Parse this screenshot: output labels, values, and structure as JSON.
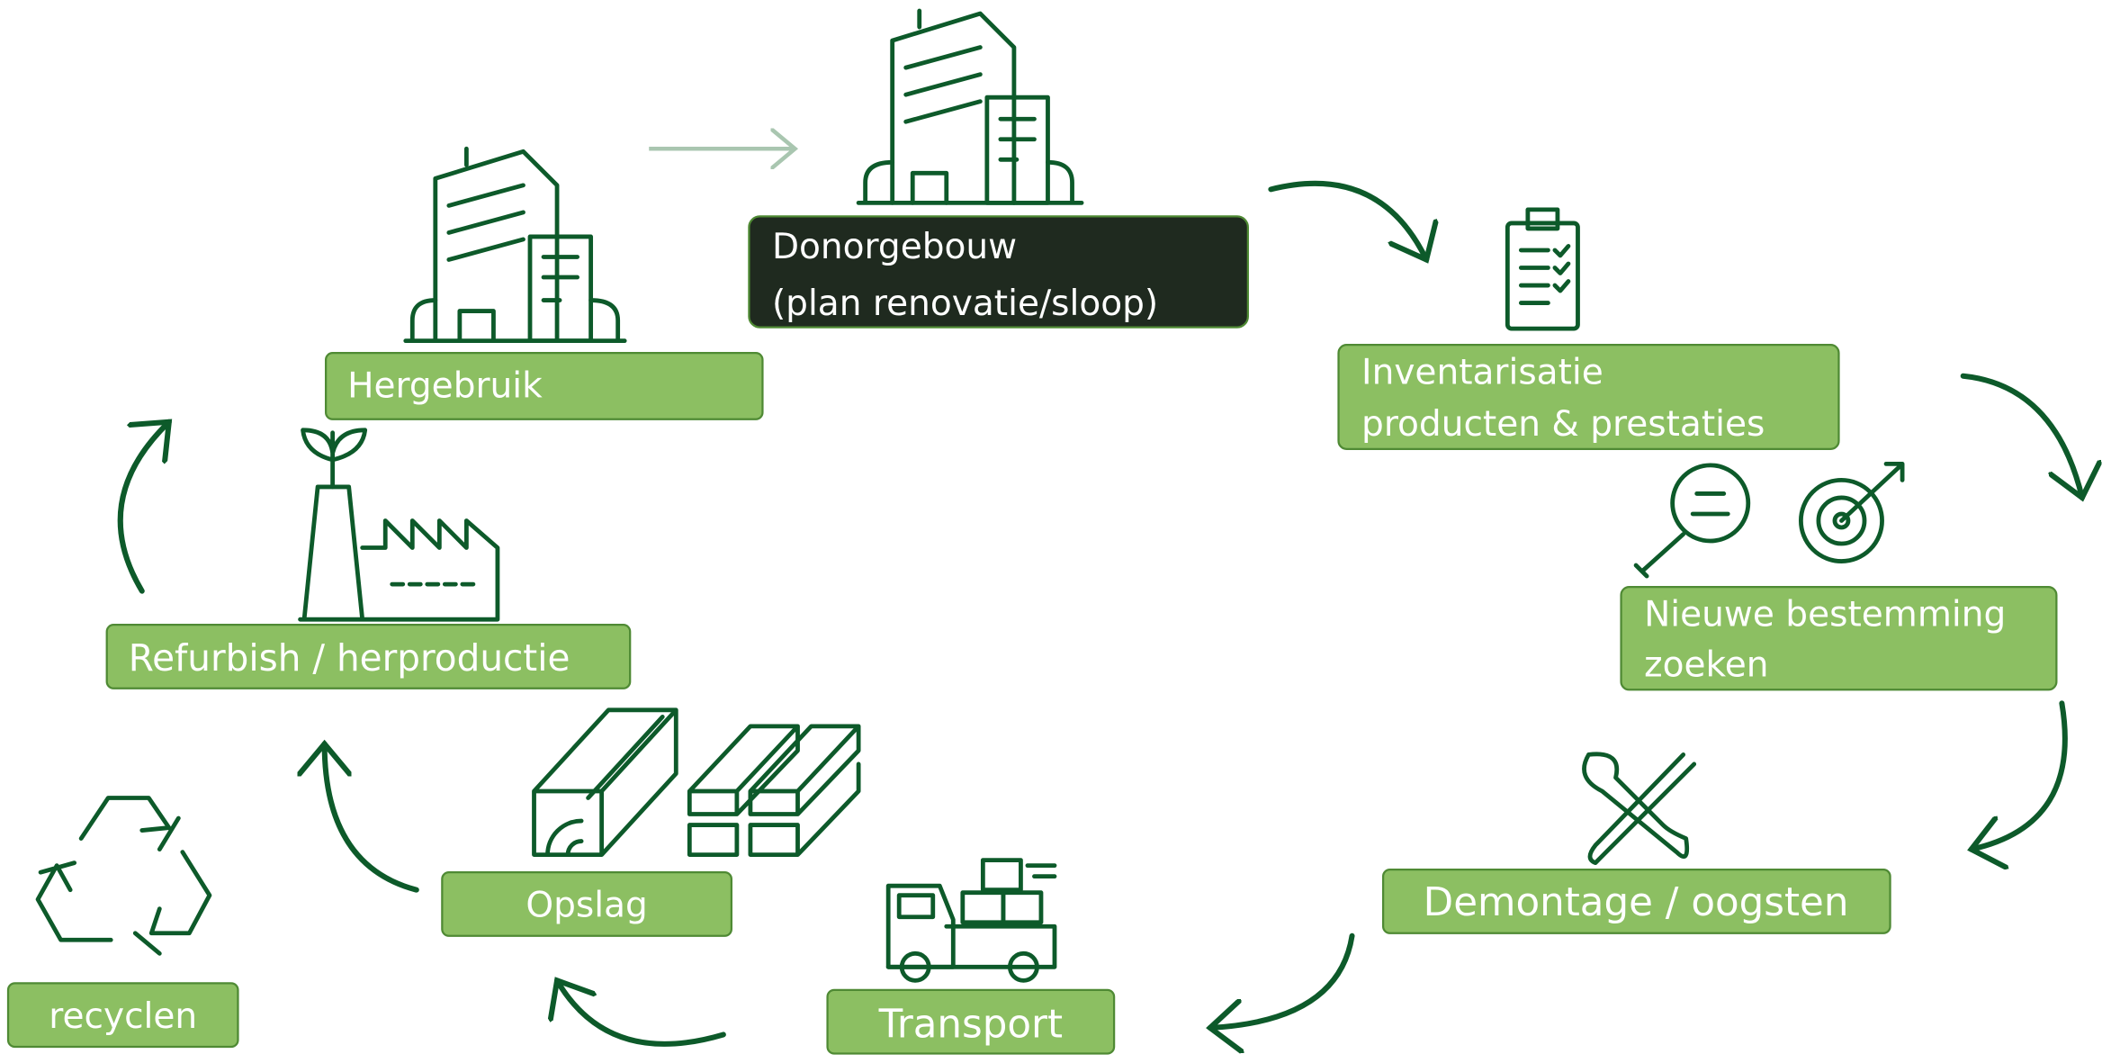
{
  "nodes": [
    {
      "label": [
        "Donorgebouw",
        "(plan renovatie/sloop)"
      ]
    },
    {
      "label": [
        "Inventarisatie",
        "producten & prestaties"
      ]
    },
    {
      "label": [
        "Nieuwe bestemming",
        "zoeken"
      ]
    },
    {
      "label": [
        "Demontage / oogsten"
      ]
    },
    {
      "label": [
        "Transport"
      ]
    },
    {
      "label": [
        "Opslag"
      ]
    },
    {
      "label": [
        "Refurbish / herproductie"
      ]
    },
    {
      "label": [
        "Hergebruik"
      ]
    },
    {
      "label": [
        "recyclen"
      ]
    }
  ]
}
